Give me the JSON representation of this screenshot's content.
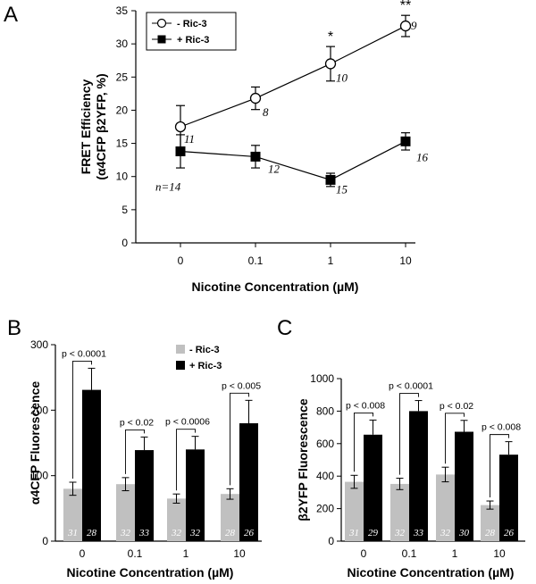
{
  "panels": {
    "a": "A",
    "b": "B",
    "c": "C"
  },
  "chart_data": [
    {
      "type": "line",
      "panel": "A",
      "xlabel": "Nicotine Concentration (µM)",
      "ylabel_lines": [
        "FRET Efficiency",
        "(α4CFP β2YFP, %)"
      ],
      "x": [
        "0",
        "0.1",
        "1",
        "10"
      ],
      "ylim": [
        0,
        35
      ],
      "yticks": [
        0,
        5,
        10,
        15,
        20,
        25,
        30,
        35
      ],
      "legend_position": "top-left",
      "series": [
        {
          "name": "- Ric-3",
          "values": [
            17.5,
            21.8,
            27.0,
            32.7
          ],
          "errors": [
            3.2,
            1.7,
            2.6,
            1.6
          ],
          "n": [
            "11",
            "8",
            "10",
            "9"
          ],
          "marker": "open-circle"
        },
        {
          "name": "+ Ric-3",
          "values": [
            13.8,
            13.0,
            9.5,
            15.3
          ],
          "errors": [
            2.5,
            1.7,
            1.0,
            1.3
          ],
          "n": [
            "n=14",
            "12",
            "15",
            "16"
          ],
          "marker": "filled-square"
        }
      ],
      "annotations": [
        {
          "x": "1",
          "text": "*"
        },
        {
          "x": "10",
          "text": "**"
        }
      ]
    },
    {
      "type": "bar",
      "panel": "B",
      "xlabel": "Nicotine Concentration (µM)",
      "ylabel": "α4CFP Fluorescence",
      "categories": [
        "0",
        "0.1",
        "1",
        "10"
      ],
      "ylim": [
        0,
        300
      ],
      "yticks": [
        0,
        100,
        200,
        300
      ],
      "legend_position": "top-right",
      "series": [
        {
          "name": "- Ric-3",
          "color": "#c0c0c0",
          "values": [
            80,
            87,
            65,
            72
          ],
          "errors": [
            10,
            10,
            7,
            8
          ],
          "n": [
            "31",
            "32",
            "32",
            "28"
          ]
        },
        {
          "name": "+ Ric-3",
          "color": "#000000",
          "values": [
            231,
            139,
            140,
            180
          ],
          "errors": [
            33,
            20,
            20,
            35
          ],
          "n": [
            "28",
            "33",
            "32",
            "26"
          ]
        }
      ],
      "pvalues": [
        "p < 0.0001",
        "p < 0.02",
        "p < 0.0006",
        "p < 0.005"
      ]
    },
    {
      "type": "bar",
      "panel": "C",
      "xlabel": "Nicotine Concentration (µM)",
      "ylabel": "β2YFP Fluorescence",
      "categories": [
        "0",
        "0.1",
        "1",
        "10"
      ],
      "ylim": [
        0,
        1000
      ],
      "yticks": [
        0,
        200,
        400,
        600,
        800,
        1000
      ],
      "legend_position": "none",
      "series": [
        {
          "name": "- Ric-3",
          "color": "#c0c0c0",
          "values": [
            365,
            352,
            410,
            222
          ],
          "errors": [
            40,
            35,
            45,
            25
          ],
          "n": [
            "31",
            "32",
            "32",
            "28"
          ]
        },
        {
          "name": "+ Ric-3",
          "color": "#000000",
          "values": [
            655,
            800,
            673,
            532
          ],
          "errors": [
            90,
            65,
            70,
            80
          ],
          "n": [
            "29",
            "33",
            "30",
            "26"
          ]
        }
      ],
      "pvalues": [
        "p < 0.008",
        "p < 0.0001",
        "p < 0.02",
        "p < 0.008"
      ]
    }
  ]
}
